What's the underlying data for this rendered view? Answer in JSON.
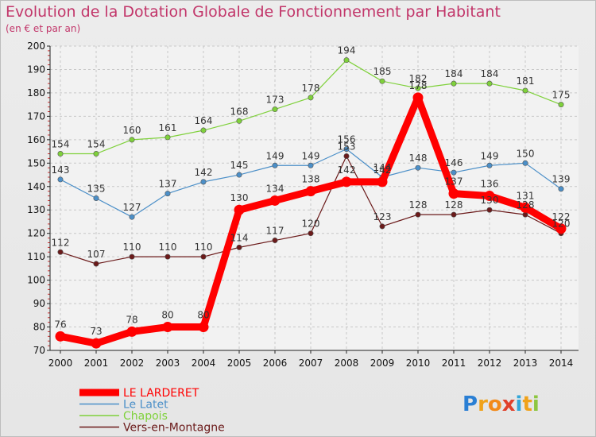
{
  "title": "Evolution de la Dotation Globale de Fonctionnement par Habitant",
  "subtitle": "(en € et par an)",
  "logo": "Proxiti",
  "chart_data": {
    "type": "line",
    "title": "Evolution de la Dotation Globale de Fonctionnement par Habitant",
    "subtitle": "(en € et par an)",
    "xlabel": "",
    "ylabel": "",
    "ylim": [
      70,
      200
    ],
    "yticks": [
      70,
      80,
      90,
      100,
      110,
      120,
      130,
      140,
      150,
      160,
      170,
      180,
      190,
      200
    ],
    "grid": true,
    "legend": "bottom-left",
    "categories": [
      "2000",
      "2001",
      "2002",
      "2003",
      "2004",
      "2005",
      "2006",
      "2007",
      "2008",
      "2009",
      "2010",
      "2011",
      "2012",
      "2013",
      "2014"
    ],
    "series": [
      {
        "name": "Chapois",
        "color": "#7fd13b",
        "values": [
          154,
          154,
          160,
          161,
          164,
          168,
          173,
          178,
          194,
          185,
          182,
          184,
          184,
          181,
          175
        ]
      },
      {
        "name": "Le Latet",
        "color": "#4b8fc8",
        "values": [
          143,
          135,
          127,
          137,
          142,
          145,
          149,
          149,
          156,
          144,
          148,
          146,
          149,
          150,
          139
        ]
      },
      {
        "name": "Vers-en-Montagne",
        "color": "#6b1a1a",
        "values": [
          112,
          107,
          110,
          110,
          110,
          114,
          117,
          120,
          153,
          123,
          128,
          128,
          130,
          128,
          120
        ]
      },
      {
        "name": "LE LARDERET",
        "color": "#ff0000",
        "values": [
          76,
          73,
          78,
          80,
          80,
          130,
          134,
          138,
          142,
          142,
          178,
          137,
          136,
          131,
          122
        ]
      }
    ],
    "legend_order": [
      "LE LARDERET",
      "Le Latet",
      "Chapois",
      "Vers-en-Montagne"
    ]
  }
}
